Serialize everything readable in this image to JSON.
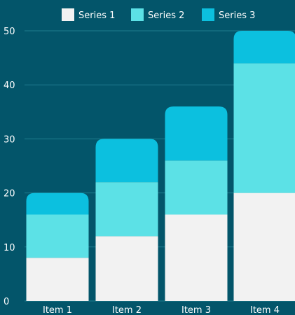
{
  "chart_data": {
    "type": "bar",
    "stacked": true,
    "categories": [
      "Item 1",
      "Item 2",
      "Item 3",
      "Item 4"
    ],
    "series": [
      {
        "name": "Series 1",
        "values": [
          8,
          12,
          16,
          20
        ],
        "color": "#f2f2f2"
      },
      {
        "name": "Series 2",
        "values": [
          8,
          10,
          10,
          24
        ],
        "color": "#5ce1e6"
      },
      {
        "name": "Series 3",
        "values": [
          4,
          8,
          10,
          6
        ],
        "color": "#0cc0df"
      }
    ],
    "title": "",
    "xlabel": "",
    "ylabel": "",
    "ylim": [
      0,
      50
    ],
    "yticks": [
      0,
      10,
      20,
      30,
      40,
      50
    ],
    "grid": true,
    "legend_position": "top",
    "background": "#03556a",
    "gridline_color": "#1f7d8e"
  }
}
